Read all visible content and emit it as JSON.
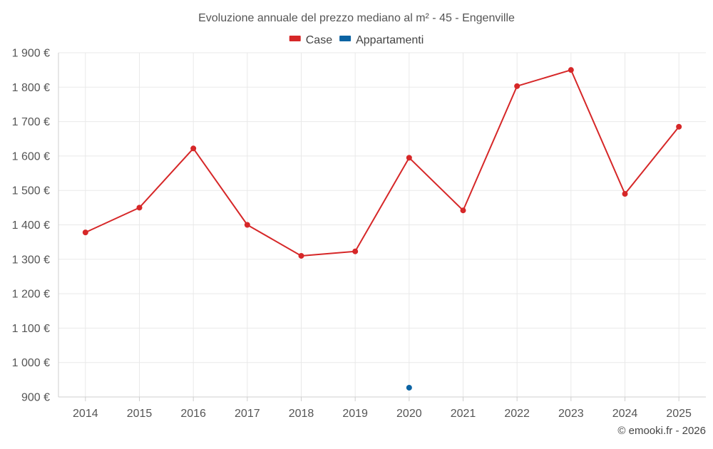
{
  "chart_data": {
    "type": "line",
    "title": "Evoluzione annuale del prezzo mediano al m² - 45 - Engenville",
    "categories": [
      "2014",
      "2015",
      "2016",
      "2017",
      "2018",
      "2019",
      "2020",
      "2021",
      "2022",
      "2023",
      "2024",
      "2025"
    ],
    "y_ticks": [
      "900 €",
      "1 000 €",
      "1 100 €",
      "1 200 €",
      "1 300 €",
      "1 400 €",
      "1 500 €",
      "1 600 €",
      "1 700 €",
      "1 800 €",
      "1 900 €"
    ],
    "ylim": [
      900,
      1900
    ],
    "grid": true,
    "legend_position": "top-center",
    "series": [
      {
        "name": "Case",
        "color": "#d62728",
        "values": [
          1378,
          1450,
          1622,
          1400,
          1310,
          1323,
          1595,
          1442,
          1803,
          1850,
          1490,
          1685
        ]
      },
      {
        "name": "Appartamenti",
        "color": "#0b63a3",
        "values": [
          null,
          null,
          null,
          null,
          null,
          null,
          927,
          null,
          null,
          null,
          null,
          null
        ]
      }
    ],
    "xlabel": "",
    "ylabel": ""
  },
  "credit": "© emooki.fr - 2026"
}
